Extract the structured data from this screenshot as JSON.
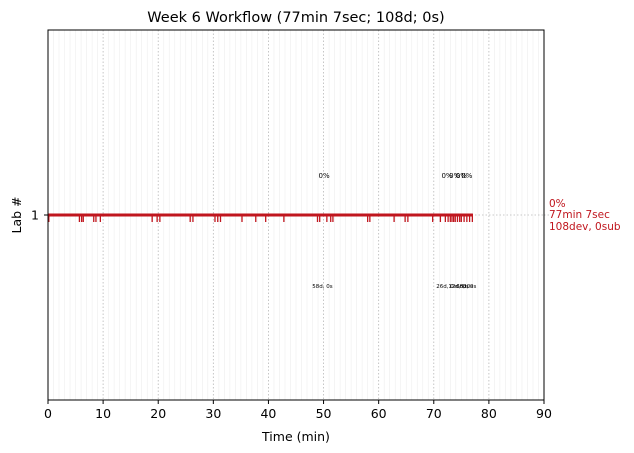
{
  "chart_data": {
    "type": "event-timeline",
    "title": "Week 6 Workflow (77min 7sec; 108d; 0s)",
    "xlabel": "Time (min)",
    "ylabel": "Lab #",
    "xlim": [
      0,
      90
    ],
    "xticks": [
      0,
      10,
      20,
      30,
      40,
      50,
      60,
      70,
      80,
      90
    ],
    "ylim": [
      0,
      2
    ],
    "yticks": [
      1
    ],
    "grid": true,
    "color": "#c0161e",
    "lab": 1,
    "duration_min": 77.1,
    "events": [
      0.15,
      5.7,
      6.1,
      6.4,
      8.3,
      8.7,
      9.5,
      18.9,
      19.8,
      20.3,
      25.8,
      26.3,
      30.3,
      30.8,
      31.3,
      35.2,
      37.7,
      39.5,
      42.8,
      48.9,
      49.3,
      50.6,
      51.3,
      51.7,
      58.0,
      58.4,
      62.8,
      64.8,
      65.3,
      69.8,
      71.2,
      72.1,
      72.6,
      73.0,
      73.3,
      73.6,
      73.9,
      74.3,
      74.7,
      75.0,
      75.5,
      76.0,
      76.5,
      77.0
    ],
    "annotations_above": [
      {
        "x": 50.1,
        "text": "0%"
      },
      {
        "x": 72.4,
        "text": "0%"
      },
      {
        "x": 73.8,
        "text": "0%"
      },
      {
        "x": 75.0,
        "text": "0%"
      },
      {
        "x": 76.0,
        "text": "0%"
      }
    ],
    "annotations_below": [
      {
        "x": 49.8,
        "text": "58d, 0s"
      },
      {
        "x": 72.3,
        "text": "26d, 0s"
      },
      {
        "x": 74.5,
        "text": "12d, 0s"
      },
      {
        "x": 75.6,
        "text": "6d, 0s"
      },
      {
        "x": 76.2,
        "text": "6d, 0s"
      }
    ],
    "right_labels": [
      "0%",
      "77min 7sec",
      "108dev, 0sub"
    ]
  }
}
